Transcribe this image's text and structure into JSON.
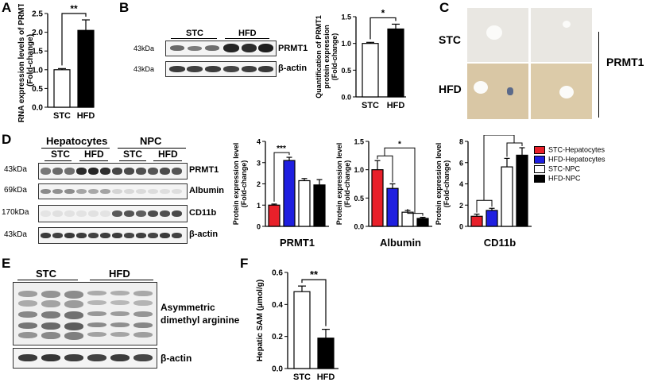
{
  "panels": {
    "A": "A",
    "B": "B",
    "C": "C",
    "D": "D",
    "E": "E",
    "F": "F"
  },
  "panel_a": {
    "chart_data": {
      "type": "bar",
      "categories": [
        "STC",
        "HFD"
      ],
      "values": [
        1.0,
        2.05
      ],
      "errors": [
        0.03,
        0.28
      ],
      "ylabel": "RNA expression levels of PRMT1 (Fold-change)",
      "ylim": [
        0,
        2.5
      ],
      "yticks": [
        "0.0",
        "0.5",
        "1.0",
        "1.5",
        "2.0",
        "2.5"
      ],
      "significance": "**",
      "colors": [
        "#ffffff",
        "#000000"
      ]
    }
  },
  "panel_b": {
    "mw_prmt1": "43kDa",
    "mw_actin": "43kDa",
    "group_stc": "STC",
    "group_hfd": "HFD",
    "protein_prmt1": "PRMT1",
    "protein_actin": "β-actin",
    "chart_data": {
      "type": "bar",
      "categories": [
        "STC",
        "HFD"
      ],
      "values": [
        1.0,
        1.27
      ],
      "errors": [
        0.02,
        0.09
      ],
      "ylabel": "Quantification of PRMT1 protein expression (Fold-change)",
      "ylim": [
        0,
        1.5
      ],
      "yticks": [
        "0.0",
        "0.5",
        "1.0",
        "1.5"
      ],
      "significance": "*",
      "colors": [
        "#ffffff",
        "#000000"
      ]
    }
  },
  "panel_c": {
    "row_stc": "STC",
    "row_hfd": "HFD",
    "stain": "PRMT1"
  },
  "panel_d": {
    "header_hep": "Hepatocytes",
    "header_npc": "NPC",
    "sub_stc_1": "STC",
    "sub_hfd_1": "HFD",
    "sub_stc_2": "STC",
    "sub_hfd_2": "HFD",
    "mw_prmt1": "43kDa",
    "mw_albumin": "69kDa",
    "mw_cd11b": "170kDa",
    "mw_actin": "43kDa",
    "protein_prmt1": "PRMT1",
    "protein_albumin": "Albumin",
    "protein_cd11b": "CD11b",
    "protein_actin": "β-actin",
    "legend": [
      {
        "label": "STC-Hepatocytes",
        "color": "#e8202a"
      },
      {
        "label": "HFD-Hepatocytes",
        "color": "#1f1fe0"
      },
      {
        "label": "STC-NPC",
        "color": "#ffffff"
      },
      {
        "label": "HFD-NPC",
        "color": "#000000"
      }
    ],
    "chart_data": [
      {
        "type": "bar",
        "title": "PRMT1",
        "ylabel": "Protein expression level (Fold-change)",
        "categories": [
          "STC-Hepatocytes",
          "HFD-Hepatocytes",
          "STC-NPC",
          "HFD-NPC"
        ],
        "values": [
          1.0,
          3.1,
          2.15,
          1.95
        ],
        "errors": [
          0.05,
          0.15,
          0.1,
          0.25
        ],
        "ylim": [
          0,
          4
        ],
        "yticks": [
          "0",
          "1",
          "2",
          "3",
          "4"
        ],
        "significance": "***"
      },
      {
        "type": "bar",
        "title": "Albumin",
        "ylabel": "Protein expression level (Fold-change)",
        "categories": [
          "STC-Hepatocytes",
          "HFD-Hepatocytes",
          "STC-NPC",
          "HFD-NPC"
        ],
        "values": [
          1.0,
          0.67,
          0.25,
          0.14
        ],
        "errors": [
          0.16,
          0.08,
          0.03,
          0.02
        ],
        "ylim": [
          0,
          1.5
        ],
        "yticks": [
          "0.0",
          "0.5",
          "1.0",
          "1.5"
        ],
        "significance": "*"
      },
      {
        "type": "bar",
        "title": "CD11b",
        "ylabel": "Protein expression level (Fold-change)",
        "categories": [
          "STC-Hepatocytes",
          "HFD-Hepatocytes",
          "STC-NPC",
          "HFD-NPC"
        ],
        "values": [
          0.95,
          1.5,
          5.6,
          6.7
        ],
        "errors": [
          0.2,
          0.2,
          0.8,
          0.7
        ],
        "ylim": [
          0,
          8
        ],
        "yticks": [
          "0",
          "2",
          "4",
          "6",
          "8"
        ],
        "significance": "**"
      }
    ]
  },
  "panel_e": {
    "group_stc": "STC",
    "group_hfd": "HFD",
    "protein_adma_1": "Asymmetric",
    "protein_adma_2": "dimethyl arginine",
    "protein_actin": "β-actin"
  },
  "panel_f": {
    "chart_data": {
      "type": "bar",
      "categories": [
        "STC",
        "HFD"
      ],
      "values": [
        0.48,
        0.19
      ],
      "errors": [
        0.035,
        0.055
      ],
      "ylabel": "Hepatic SAM (μmol/g)",
      "ylim": [
        0,
        0.6
      ],
      "yticks": [
        "0.0",
        "0.2",
        "0.4",
        "0.6"
      ],
      "significance": "**",
      "colors": [
        "#ffffff",
        "#000000"
      ]
    }
  }
}
